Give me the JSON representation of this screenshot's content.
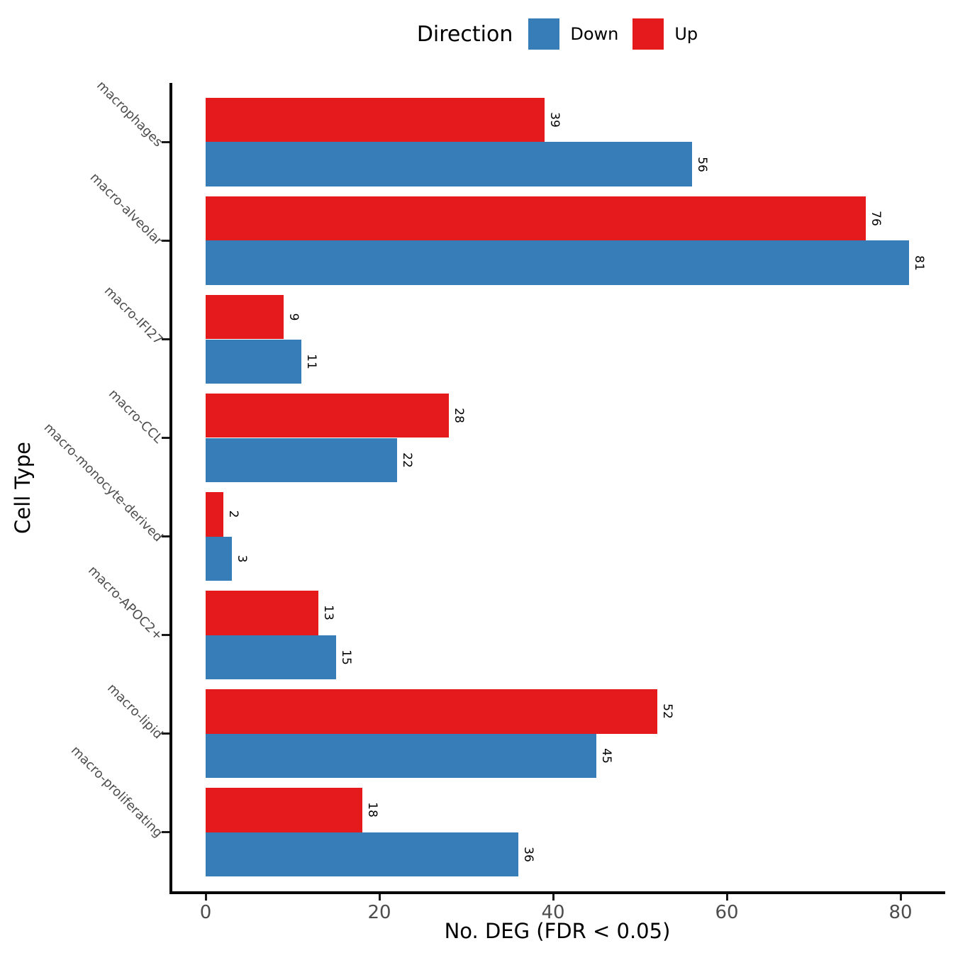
{
  "legend": {
    "title": "Direction",
    "items": [
      {
        "label": "Down",
        "color": "#377EB8"
      },
      {
        "label": "Up",
        "color": "#E41A1C"
      }
    ]
  },
  "chart_data": {
    "type": "bar",
    "orientation": "horizontal",
    "title": "",
    "xlabel": "No. DEG (FDR < 0.05)",
    "ylabel": "Cell Type",
    "categories": [
      "macrophages",
      "macro-alveolar",
      "macro-IFI27",
      "macro-CCL",
      "macro-monocyte-derived",
      "macro-APOC2+",
      "macro-lipid",
      "macro-proliferating"
    ],
    "series": [
      {
        "name": "Up",
        "color": "#E41A1C",
        "values": [
          39,
          76,
          9,
          28,
          2,
          13,
          52,
          18
        ]
      },
      {
        "name": "Down",
        "color": "#377EB8",
        "values": [
          56,
          81,
          11,
          22,
          3,
          15,
          45,
          36
        ]
      }
    ],
    "value_labels": true,
    "x_ticks": [
      0,
      20,
      40,
      60,
      80
    ],
    "xlim": [
      0,
      85
    ],
    "grid": false,
    "legend_position": "top",
    "bar_order_within_group": [
      "Up",
      "Down"
    ],
    "axis_color": "#000000",
    "tick_color": "#1a1a1a",
    "tick_text_color": "#4d4d4d"
  }
}
